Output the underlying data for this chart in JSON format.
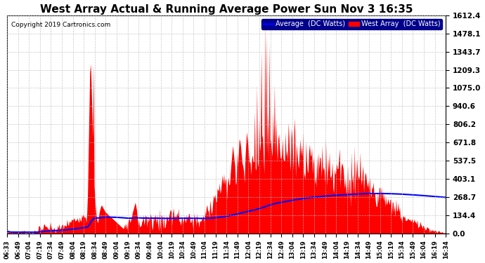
{
  "title": "West Array Actual & Running Average Power Sun Nov 3 16:35",
  "copyright": "Copyright 2019 Cartronics.com",
  "legend_labels": [
    "Average  (DC Watts)",
    "West Array  (DC Watts)"
  ],
  "legend_bg": "#00008B",
  "ymin": 0.0,
  "ymax": 1612.4,
  "yticks": [
    0.0,
    134.4,
    268.7,
    403.1,
    537.5,
    671.8,
    806.2,
    940.6,
    1075.0,
    1209.3,
    1343.7,
    1478.1,
    1612.4
  ],
  "bg_color": "#ffffff",
  "plot_bg": "#ffffff",
  "bar_color": "#ff0000",
  "avg_color": "#0000ff",
  "grid_color": "#bbbbbb",
  "title_color": "#000000",
  "title_fontsize": 11,
  "xtick_fontsize": 6,
  "ytick_fontsize": 7.5
}
